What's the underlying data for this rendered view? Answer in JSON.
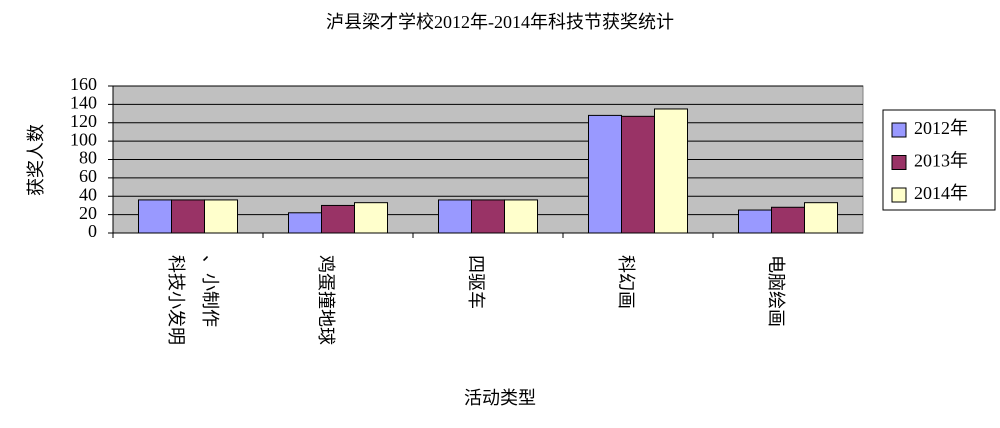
{
  "chart_data": {
    "type": "bar",
    "title": "泸县梁才学校2012年-2014年科技节获奖统计",
    "x_label": "活动类型",
    "y_label": "获奖人数",
    "categories": [
      "科技小发明、小制作",
      "鸡蛋撞地球",
      "四驱车",
      "科幻画",
      "电脑绘画"
    ],
    "series": [
      {
        "name": "2012年",
        "color": "#9999ff",
        "values": [
          36,
          22,
          36,
          128,
          25
        ]
      },
      {
        "name": "2013年",
        "color": "#993366",
        "values": [
          36,
          30,
          36,
          127,
          28
        ]
      },
      {
        "name": "2014年",
        "color": "#ffffcc",
        "values": [
          36,
          33,
          36,
          135,
          33
        ]
      }
    ],
    "ylim": [
      0,
      160
    ],
    "yticks": [
      0,
      20,
      40,
      60,
      80,
      100,
      120,
      140,
      160
    ],
    "grid": true,
    "legend": "right"
  }
}
